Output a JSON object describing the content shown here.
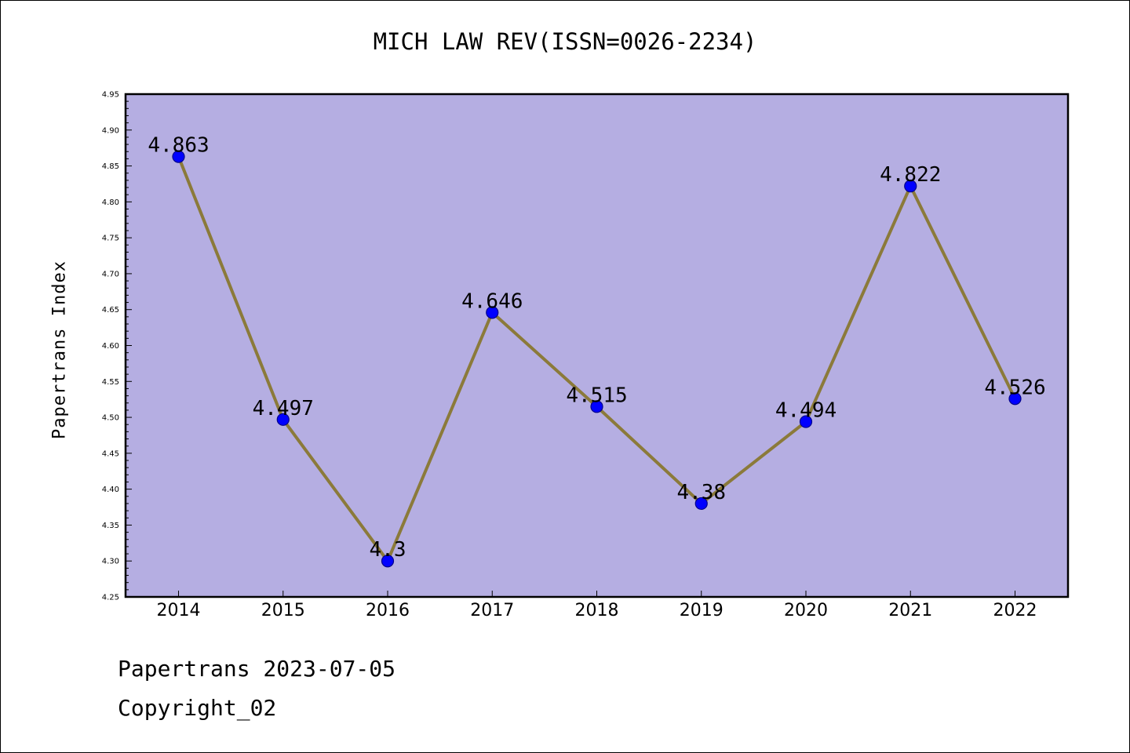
{
  "chart_data": {
    "type": "line",
    "title": "MICH LAW REV(ISSN=0026-2234)",
    "xlabel": "",
    "ylabel": "Papertrans Index",
    "categories": [
      "2014",
      "2015",
      "2016",
      "2017",
      "2018",
      "2019",
      "2020",
      "2021",
      "2022"
    ],
    "series": [
      {
        "values": [
          4.863,
          4.497,
          4.3,
          4.646,
          4.515,
          4.38,
          4.494,
          4.822,
          4.526
        ],
        "labels": [
          "4.863",
          "4.497",
          "4.3",
          "4.646",
          "4.515",
          "4.38",
          "4.494",
          "4.822",
          "4.526"
        ]
      }
    ],
    "ylim": [
      4.25,
      4.95
    ],
    "yticks": [
      "4.25",
      "4.30",
      "4.35",
      "4.40",
      "4.45",
      "4.50",
      "4.55",
      "4.60",
      "4.65",
      "4.70",
      "4.75",
      "4.80",
      "4.85",
      "4.90",
      "4.95"
    ],
    "grid": false,
    "legend": "none",
    "colors": {
      "plot_background": "#b5aee2",
      "line": "#8b7a3a",
      "marker_fill": "#0000ff",
      "marker_edge": "#00008b",
      "axes": "#000000"
    }
  },
  "footer": {
    "date_line": "Papertrans 2023-07-05",
    "copyright": "Copyright_02"
  }
}
